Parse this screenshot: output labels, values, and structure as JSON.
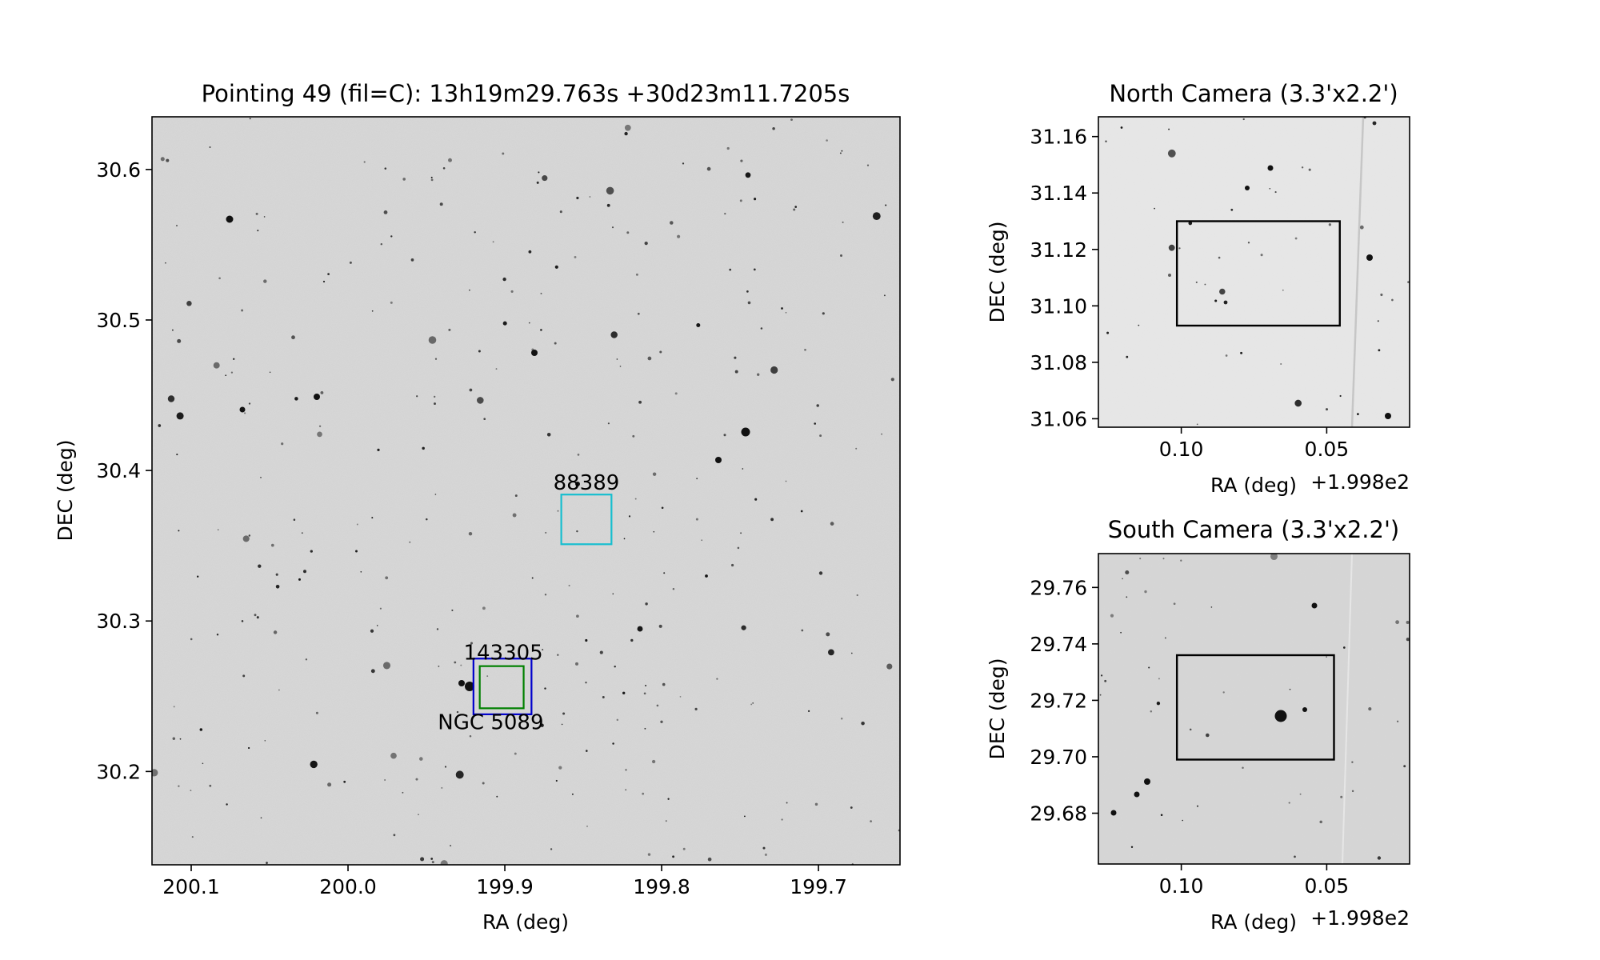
{
  "chart_data": [
    {
      "type": "scatter",
      "title": "Pointing 49 (fil=C): 13h19m29.763s +30d23m11.7205s",
      "xlabel": "RA (deg)",
      "ylabel": "DEC (deg)",
      "xlim": [
        200.125,
        199.648
      ],
      "ylim": [
        30.138,
        30.635
      ],
      "xticks": [
        200.1,
        200.0,
        199.9,
        199.8,
        199.7
      ],
      "xtick_labels": [
        "200.1",
        "200.0",
        "199.9",
        "199.8",
        "199.7"
      ],
      "yticks": [
        30.2,
        30.3,
        30.4,
        30.5,
        30.6
      ],
      "ytick_labels": [
        "30.2",
        "30.3",
        "30.4",
        "30.5",
        "30.6"
      ],
      "image": "grayscale sky image, inverted (stars dark on light gray)",
      "grid": false,
      "annotations": [
        {
          "label": "88389",
          "ra": 199.848,
          "dec": 30.392,
          "box_ra": [
            199.864,
            199.832
          ],
          "box_dec": [
            30.351,
            30.384
          ],
          "color": "#17becf"
        },
        {
          "label": "143305",
          "ra": 199.901,
          "dec": 30.279,
          "box_ra": [
            199.92,
            199.883
          ],
          "box_dec": [
            30.238,
            30.275
          ],
          "color": "#0000cc"
        },
        {
          "label": "NGC 5089",
          "ra": 199.909,
          "dec": 30.233,
          "box_ra": [
            199.916,
            199.888
          ],
          "box_dec": [
            30.242,
            30.27
          ],
          "color": "#008000"
        }
      ]
    },
    {
      "type": "scatter",
      "title": "North Camera (3.3'x2.2')",
      "xlabel": "RA (deg)",
      "xlabel_offset": "+1.998e2",
      "ylabel": "DEC (deg)",
      "xlim": [
        0.1285,
        0.0215
      ],
      "ylim": [
        31.057,
        31.167
      ],
      "xticks": [
        0.1,
        0.05
      ],
      "xtick_labels": [
        "0.10",
        "0.05"
      ],
      "yticks": [
        31.06,
        31.08,
        31.1,
        31.12,
        31.14,
        31.16
      ],
      "ytick_labels": [
        "31.06",
        "31.08",
        "31.10",
        "31.12",
        "31.14",
        "31.16"
      ],
      "image": "grayscale sky image, inverted",
      "grid": false,
      "box": {
        "ra": [
          0.1015,
          0.0455
        ],
        "dec": [
          31.093,
          31.13
        ],
        "color": "#000000"
      }
    },
    {
      "type": "scatter",
      "title": "South Camera (3.3'x2.2')",
      "xlabel": "RA (deg)",
      "xlabel_offset": "+1.998e2",
      "ylabel": "DEC (deg)",
      "xlim": [
        0.1285,
        0.0215
      ],
      "ylim": [
        29.662,
        29.772
      ],
      "xticks": [
        0.1,
        0.05
      ],
      "xtick_labels": [
        "0.10",
        "0.05"
      ],
      "yticks": [
        29.68,
        29.7,
        29.72,
        29.74,
        29.76
      ],
      "ytick_labels": [
        "29.68",
        "29.70",
        "29.72",
        "29.74",
        "29.76"
      ],
      "image": "grayscale sky image, inverted",
      "grid": false,
      "box": {
        "ra": [
          0.1015,
          0.0475
        ],
        "dec": [
          29.699,
          29.736
        ],
        "color": "#000000"
      }
    }
  ]
}
